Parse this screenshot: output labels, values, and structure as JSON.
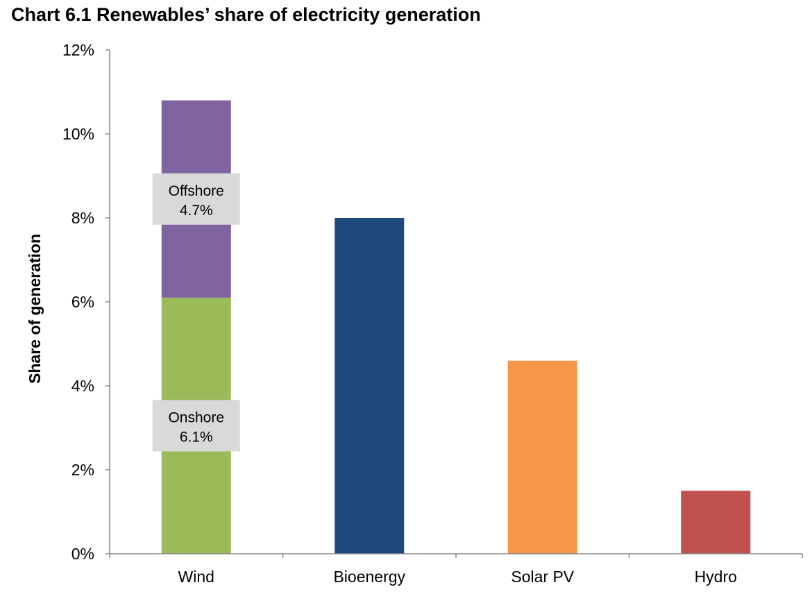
{
  "chart_data": {
    "type": "bar",
    "stacked": true,
    "title": "Chart 6.1 Renewables’ share of electricity generation",
    "xlabel": "",
    "ylabel": "Share of generation",
    "ylim": [
      0,
      12
    ],
    "yticks": [
      "0%",
      "2%",
      "4%",
      "6%",
      "8%",
      "10%",
      "12%"
    ],
    "grid": false,
    "categories": [
      "Wind",
      "Bioenergy",
      "Solar PV",
      "Hydro"
    ],
    "series": [
      {
        "values": [
          6.1,
          8.0,
          4.6,
          1.5
        ],
        "colors": [
          "#9bbb59",
          "#1f497d",
          "#f79646",
          "#c0504d"
        ]
      },
      {
        "values": [
          4.7,
          0,
          0,
          0
        ],
        "colors": [
          "#8064a2",
          "#8064a2",
          "#8064a2",
          "#8064a2"
        ]
      }
    ],
    "annotations": [
      {
        "category": "Wind",
        "series_index": 1,
        "line1": "Offshore",
        "line2": "4.7%"
      },
      {
        "category": "Wind",
        "series_index": 0,
        "line1": "Onshore",
        "line2": "6.1%"
      }
    ]
  }
}
